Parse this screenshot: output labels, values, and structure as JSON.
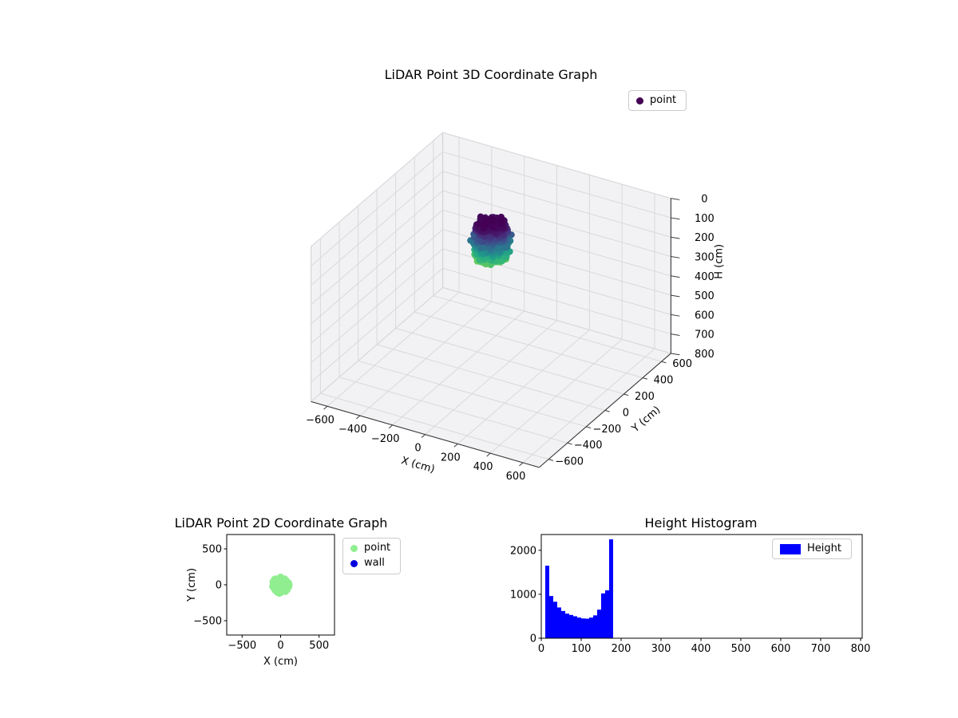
{
  "figure": {
    "background": "#ffffff"
  },
  "chart_data": [
    {
      "type": "scatter3d",
      "title": "LiDAR Point 3D Coordinate Graph",
      "xlabel": "X (cm)",
      "ylabel": "Y (cm)",
      "zlabel": "H (cm)",
      "xlim": [
        -700,
        700
      ],
      "ylim": [
        -700,
        700
      ],
      "zlim": [
        0,
        800
      ],
      "z_inverted": true,
      "xticks": [
        -600,
        -400,
        -200,
        0,
        200,
        400,
        600
      ],
      "yticks": [
        -600,
        -400,
        -200,
        0,
        200,
        400,
        600
      ],
      "zticks": [
        0,
        100,
        200,
        300,
        400,
        500,
        600,
        700,
        800
      ],
      "view": {
        "elev": 30,
        "azim": -60
      },
      "legend": [
        {
          "label": "point",
          "color": "#440154",
          "marker": "dot"
        }
      ],
      "colormap": "viridis",
      "pane_color": "#f2f2f4",
      "grid_color": "#d9d9dc",
      "points_summary": {
        "count": 900,
        "center_x": 0,
        "center_y": 0,
        "radius_cm": 100,
        "h_min": 0,
        "h_max": 185,
        "color_by": "height"
      }
    },
    {
      "type": "scatter",
      "title": "LiDAR Point 2D Coordinate Graph",
      "xlabel": "X (cm)",
      "ylabel": "Y (cm)",
      "xlim": [
        -700,
        700
      ],
      "ylim": [
        -700,
        700
      ],
      "xticks": [
        -500,
        0,
        500
      ],
      "yticks": [
        -500,
        0,
        500
      ],
      "legend": [
        {
          "label": "point",
          "color": "#90ee90",
          "marker": "dot"
        },
        {
          "label": "wall",
          "color": "#0000dd",
          "marker": "dot"
        }
      ],
      "points_summary": {
        "count": 420,
        "center_x": 0,
        "center_y": -8,
        "radius_cm": 110,
        "color": "#90ee90"
      }
    },
    {
      "type": "bar",
      "title": "Height Histogram",
      "legend": [
        {
          "label": "Height",
          "color": "#0000ff",
          "marker": "patch"
        }
      ],
      "bar_color": "#0000ff",
      "bin_start": 0,
      "bin_width": 10,
      "values": [
        0,
        1650,
        960,
        830,
        700,
        620,
        560,
        530,
        500,
        470,
        450,
        445,
        470,
        520,
        650,
        1020,
        1090,
        2250
      ],
      "xticks": [
        0,
        100,
        200,
        300,
        400,
        500,
        600,
        700,
        800
      ],
      "yticks": [
        0,
        1000,
        2000
      ],
      "xlim": [
        0,
        804
      ],
      "ylim": [
        0,
        2360
      ]
    }
  ]
}
